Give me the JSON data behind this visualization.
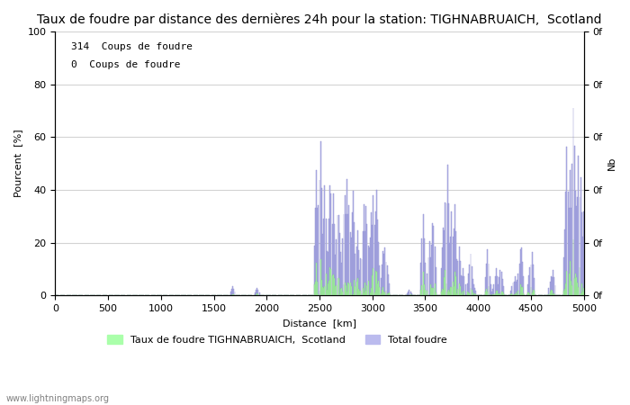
{
  "title": "Taux de foudre par distance des dernières 24h pour la station: TIGHNABRUAICH,  Scotland",
  "xlabel": "Distance  [km]",
  "ylabel_left": "Pourcent  [%]",
  "ylabel_right": "Nb",
  "annotation1": "314  Coups de foudre",
  "annotation2": "0  Coups de foudre",
  "legend_label1": "Taux de foudre TIGHNABRUAICH,  Scotland",
  "legend_label2": "Total foudre",
  "watermark": "www.lightningmaps.org",
  "xlim": [
    0,
    5000
  ],
  "ylim": [
    0,
    100
  ],
  "yticks": [
    0,
    20,
    40,
    60,
    80,
    100
  ],
  "xticks": [
    0,
    500,
    1000,
    1500,
    2000,
    2500,
    3000,
    3500,
    4000,
    4500,
    5000
  ],
  "bar_color_green": "#aaffaa",
  "bar_color_blue": "#bbbbee",
  "bar_edge_blue": "#8888cc",
  "background_color": "#ffffff",
  "title_fontsize": 10,
  "label_fontsize": 8,
  "tick_fontsize": 8
}
